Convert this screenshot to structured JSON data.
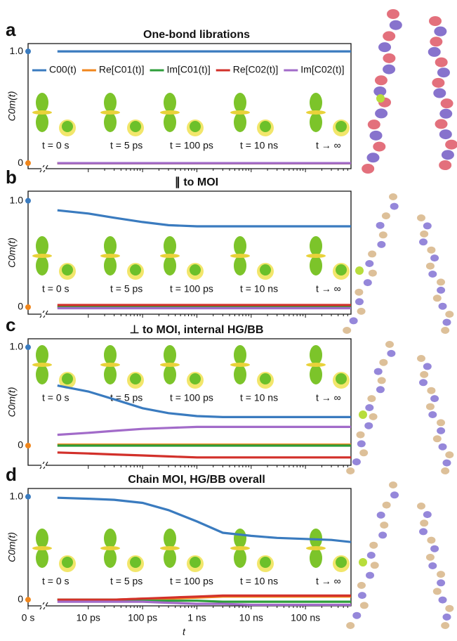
{
  "chart_data": [
    {
      "type": "line",
      "letter": "a",
      "title": "One-bond librations",
      "ylabel": "C0m(t)",
      "x": [
        2.7e-12,
        1e-11,
        3e-11,
        1e-10,
        3e-10,
        1e-09,
        3e-09,
        1e-08,
        3e-08,
        1e-07,
        3e-07,
        6.9e-07
      ],
      "xlim": [
        1.9e-12,
        6.9e-07
      ],
      "xscale": "log",
      "ylim": [
        -0.05,
        1.07
      ],
      "yticks": [
        0,
        {
          "value": 1,
          "label": "1.0"
        }
      ],
      "legend": "top",
      "series": [
        {
          "name": "C00(t)",
          "color": "#3a7bbf",
          "values": [
            1,
            1,
            1,
            1,
            1,
            1,
            1,
            1,
            1,
            1,
            1,
            1
          ]
        },
        {
          "name": "Re[C01(t)]",
          "color": "#f0861c",
          "values": [
            0,
            0,
            0,
            0,
            0,
            0,
            0,
            0,
            0,
            0,
            0,
            0
          ]
        },
        {
          "name": "Im[C01(t)]",
          "color": "#2e9e3a",
          "values": [
            0,
            0,
            0,
            0,
            0,
            0,
            0,
            0,
            0,
            0,
            0,
            0
          ]
        },
        {
          "name": "Re[C02(t)]",
          "color": "#d2302a",
          "values": [
            0,
            0,
            0,
            0,
            0,
            0,
            0,
            0,
            0,
            0,
            0,
            0
          ]
        },
        {
          "name": "Im[C02(t)]",
          "color": "#a26bc9",
          "values": [
            0,
            0,
            0,
            0,
            0,
            0,
            0,
            0,
            0,
            0,
            0,
            0
          ]
        }
      ],
      "t0_points": [
        {
          "color": "#3a7bbf",
          "value": 1
        },
        {
          "color": "#f0861c",
          "value": 0
        }
      ],
      "annotations": [
        "t = 0 s",
        "t = 5 ps",
        "t = 100 ps",
        "t = 10 ns",
        "t → ∞"
      ]
    },
    {
      "type": "line",
      "letter": "b",
      "title": "∥ to MOI",
      "ylabel": "C0m(t)",
      "x": [
        2.7e-12,
        1e-11,
        3e-11,
        1e-10,
        3e-10,
        1e-09,
        3e-09,
        1e-08,
        3e-08,
        1e-07,
        3e-07,
        6.9e-07
      ],
      "xlim": [
        1.9e-12,
        6.9e-07
      ],
      "xscale": "log",
      "ylim": [
        -0.066,
        1.09
      ],
      "yticks": [
        0,
        {
          "value": 1,
          "label": "1.0"
        }
      ],
      "series": [
        {
          "name": "C00(t)",
          "color": "#3a7bbf",
          "values": [
            0.91,
            0.88,
            0.84,
            0.8,
            0.77,
            0.76,
            0.76,
            0.76,
            0.76,
            0.76,
            0.76,
            0.76
          ]
        },
        {
          "name": "Re[C01(t)]",
          "color": "#f0861c",
          "values": [
            0.01,
            0.01,
            0.01,
            0.01,
            0.01,
            0.01,
            0.01,
            0.01,
            0.01,
            0.01,
            0.01,
            0.01
          ]
        },
        {
          "name": "Im[C01(t)]",
          "color": "#2e9e3a",
          "values": [
            0,
            0,
            0,
            0,
            0,
            0,
            0,
            0,
            0,
            0,
            0,
            0
          ]
        },
        {
          "name": "Re[C02(t)]",
          "color": "#d2302a",
          "values": [
            0.02,
            0.02,
            0.02,
            0.02,
            0.02,
            0.02,
            0.02,
            0.02,
            0.02,
            0.02,
            0.02,
            0.02
          ]
        },
        {
          "name": "Im[C02(t)]",
          "color": "#a26bc9",
          "values": [
            -0.01,
            -0.01,
            -0.01,
            -0.01,
            -0.01,
            -0.01,
            -0.01,
            -0.01,
            -0.01,
            -0.01,
            -0.01,
            -0.01
          ]
        }
      ],
      "t0_points": [
        {
          "color": "#3a7bbf",
          "value": 1
        },
        {
          "color": "#f0861c",
          "value": 0
        }
      ],
      "annotations": [
        "t = 0 s",
        "t = 5 ps",
        "t = 100 ps",
        "t = 10 ns",
        "t → ∞"
      ]
    },
    {
      "type": "line",
      "letter": "c",
      "title": "⊥ to MOI, internal HG/BB",
      "ylabel": "C0m(t)",
      "x": [
        2.7e-12,
        1e-11,
        3e-11,
        1e-10,
        3e-10,
        1e-09,
        3e-09,
        1e-08,
        3e-08,
        1e-07,
        3e-07,
        6.9e-07
      ],
      "xlim": [
        1.9e-12,
        6.9e-07
      ],
      "xscale": "log",
      "ylim": [
        -0.2,
        1.086
      ],
      "yticks": [
        0,
        {
          "value": 1,
          "label": "1.0"
        }
      ],
      "series": [
        {
          "name": "C00(t)",
          "color": "#3a7bbf",
          "values": [
            0.61,
            0.55,
            0.47,
            0.38,
            0.33,
            0.3,
            0.29,
            0.29,
            0.29,
            0.29,
            0.29,
            0.29
          ]
        },
        {
          "name": "Re[C01(t)]",
          "color": "#f0861c",
          "values": [
            0.01,
            0.01,
            0.01,
            0.01,
            0.01,
            0.01,
            0.01,
            0.01,
            0.01,
            0.01,
            0.01,
            0.01
          ]
        },
        {
          "name": "Im[C01(t)]",
          "color": "#2e9e3a",
          "values": [
            0,
            0,
            0,
            0,
            0,
            0,
            0,
            0,
            0,
            0,
            0,
            0
          ]
        },
        {
          "name": "Re[C02(t)]",
          "color": "#d2302a",
          "values": [
            -0.07,
            -0.08,
            -0.09,
            -0.1,
            -0.11,
            -0.12,
            -0.12,
            -0.12,
            -0.12,
            -0.12,
            -0.12,
            -0.12
          ]
        },
        {
          "name": "Im[C02(t)]",
          "color": "#a26bc9",
          "values": [
            0.11,
            0.13,
            0.15,
            0.17,
            0.18,
            0.19,
            0.19,
            0.19,
            0.19,
            0.19,
            0.19,
            0.19
          ]
        }
      ],
      "t0_points": [
        {
          "color": "#3a7bbf",
          "value": 1
        },
        {
          "color": "#f0861c",
          "value": 0
        }
      ],
      "annotations": [
        "t = 0 s",
        "t = 5 ps",
        "t = 100 ps",
        "t = 10 ns",
        "t → ∞"
      ]
    },
    {
      "type": "line",
      "letter": "d",
      "title": "Chain MOI, HG/BB overall",
      "ylabel": "C0m(t)",
      "xlabel": "t",
      "x": [
        2.7e-12,
        1e-11,
        3e-11,
        1e-10,
        3e-10,
        1e-09,
        3e-09,
        1e-08,
        3e-08,
        1e-07,
        3e-07,
        6.9e-07
      ],
      "xlim": [
        1.9e-12,
        6.9e-07
      ],
      "xscale": "log",
      "ylim": [
        -0.06,
        1.08
      ],
      "yticks": [
        0,
        {
          "value": 1,
          "label": "1.0"
        }
      ],
      "xticks": [
        {
          "value": 1e-11,
          "label": "10 ps"
        },
        {
          "value": 1e-10,
          "label": "100 ps"
        },
        {
          "value": 1e-09,
          "label": "1 ns"
        },
        {
          "value": 1e-08,
          "label": "10 ns"
        },
        {
          "value": 1e-07,
          "label": "100 ns"
        }
      ],
      "zero_tick": {
        "value": 0,
        "label": "0 s"
      },
      "series": [
        {
          "name": "C00(t)",
          "color": "#3a7bbf",
          "values": [
            0.99,
            0.98,
            0.97,
            0.94,
            0.87,
            0.76,
            0.65,
            0.62,
            0.6,
            0.59,
            0.58,
            0.56
          ]
        },
        {
          "name": "Re[C01(t)]",
          "color": "#f0861c",
          "values": [
            0,
            0,
            0,
            0.01,
            0.01,
            0.02,
            0.03,
            0.03,
            0.03,
            0.03,
            0.03,
            0.03
          ]
        },
        {
          "name": "Im[C01(t)]",
          "color": "#2e9e3a",
          "values": [
            0,
            0,
            0,
            -0.01,
            -0.01,
            -0.01,
            -0.02,
            -0.02,
            -0.02,
            -0.02,
            -0.02,
            -0.02
          ]
        },
        {
          "name": "Re[C02(t)]",
          "color": "#d2302a",
          "values": [
            0,
            0,
            0,
            0.01,
            0.02,
            0.03,
            0.04,
            0.04,
            0.04,
            0.04,
            0.04,
            0.04
          ]
        },
        {
          "name": "Im[C02(t)]",
          "color": "#a26bc9",
          "values": [
            -0.02,
            -0.02,
            -0.02,
            -0.02,
            -0.03,
            -0.04,
            -0.04,
            -0.05,
            -0.05,
            -0.05,
            -0.05,
            -0.05
          ]
        }
      ],
      "t0_points": [
        {
          "color": "#3a7bbf",
          "value": 1
        },
        {
          "color": "#f0861c",
          "value": 0
        }
      ],
      "annotations": [
        "t = 0 s",
        "t = 5 ps",
        "t = 100 ps",
        "t = 10 ns",
        "t → ∞"
      ]
    }
  ]
}
